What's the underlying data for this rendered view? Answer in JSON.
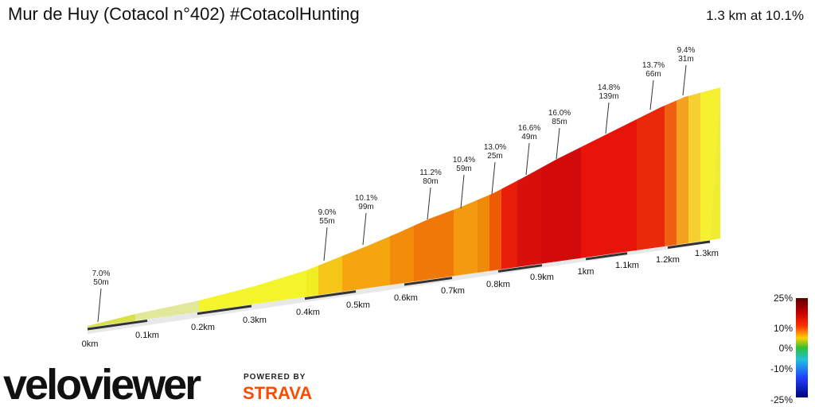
{
  "header": {
    "title": "Mur de Huy (Cotacol n°402) #CotacolHunting",
    "summary": "1.3 km at 10.1%"
  },
  "annotations": [
    {
      "grade": "7.0%",
      "length": "50m"
    },
    {
      "grade": "9.0%",
      "length": "55m"
    },
    {
      "grade": "10.1%",
      "length": "99m"
    },
    {
      "grade": "11.2%",
      "length": "80m"
    },
    {
      "grade": "10.4%",
      "length": "59m"
    },
    {
      "grade": "13.0%",
      "length": "25m"
    },
    {
      "grade": "16.6%",
      "length": "49m"
    },
    {
      "grade": "16.0%",
      "length": "85m"
    },
    {
      "grade": "14.8%",
      "length": "139m"
    },
    {
      "grade": "13.7%",
      "length": "66m"
    },
    {
      "grade": "9.4%",
      "length": "31m"
    }
  ],
  "distance_labels": [
    "0km",
    "0.1km",
    "0.2km",
    "0.3km",
    "0.4km",
    "0.5km",
    "0.6km",
    "0.7km",
    "0.8km",
    "0.9km",
    "1km",
    "1.1km",
    "1.2km",
    "1.3km"
  ],
  "color_scale": {
    "labels": [
      "25%",
      "10%",
      "0%",
      "-10%",
      "-25%"
    ]
  },
  "logo": {
    "brand": "veloviewer",
    "powered_by": "POWERED BY",
    "partner": "STRAVA"
  }
}
